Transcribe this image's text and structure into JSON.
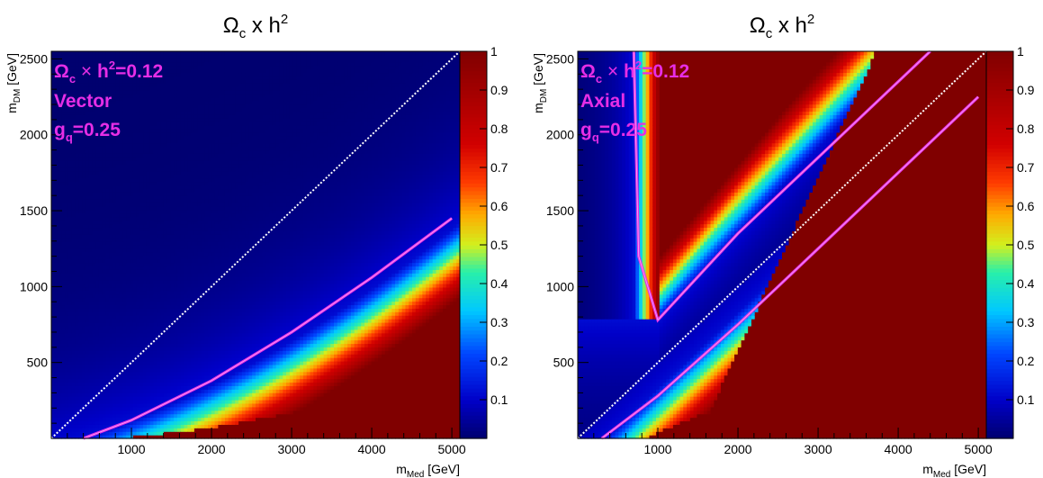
{
  "chart_data": [
    {
      "type": "heatmap",
      "title": "Ωc x h2",
      "title_main": "Ω",
      "title_sub": "c",
      "title_mid": " x h",
      "title_sup": "2",
      "xlabel": "mMed [GeV]",
      "xlabel_main": "m",
      "xlabel_sub": "Med",
      "xlabel_unit": " [GeV]",
      "ylabel": "mDM [GeV]",
      "ylabel_main": "m",
      "ylabel_sub": "DM",
      "ylabel_unit": " [GeV]",
      "xlim": [
        0,
        5100
      ],
      "ylim": [
        0,
        2550
      ],
      "xticks": [
        "1000",
        "2000",
        "3000",
        "4000",
        "5000"
      ],
      "yticks": [
        "500",
        "1000",
        "1500",
        "2000",
        "2500"
      ],
      "zlim": [
        0,
        1
      ],
      "colorbar_ticks": [
        "0.1",
        "0.2",
        "0.3",
        "0.4",
        "0.5",
        "0.6",
        "0.7",
        "0.8",
        "0.9",
        "1"
      ],
      "model": "vector",
      "annotations": [
        "Ωc × h2=0.12",
        "Vector",
        "gq=0.25"
      ],
      "annotation_parts": {
        "line1": {
          "main": "Ω",
          "sub": "c",
          "mid": " × ",
          "h": "h",
          "sup": "2",
          "rest": "=0.12"
        },
        "line2": "Vector",
        "line3": {
          "main": "g",
          "sub": "q",
          "rest": "=0.25"
        }
      },
      "contour_value": 0.12,
      "contour_color": "#e62ee6",
      "diagonal": "mMed = 2 mDM (white dotted)",
      "contour_points": [
        {
          "x": 400,
          "y": 0
        },
        {
          "x": 1000,
          "y": 120
        },
        {
          "x": 2000,
          "y": 380
        },
        {
          "x": 3000,
          "y": 700
        },
        {
          "x": 4000,
          "y": 1060
        },
        {
          "x": 5000,
          "y": 1450
        }
      ]
    },
    {
      "type": "heatmap",
      "title": "Ωc x h2",
      "title_main": "Ω",
      "title_sub": "c",
      "title_mid": " x h",
      "title_sup": "2",
      "xlabel": "mMed [GeV]",
      "xlabel_main": "m",
      "xlabel_sub": "Med",
      "xlabel_unit": " [GeV]",
      "ylabel": "mDM [GeV]",
      "ylabel_main": "m",
      "ylabel_sub": "DM",
      "ylabel_unit": " [GeV]",
      "xlim": [
        0,
        5100
      ],
      "ylim": [
        0,
        2550
      ],
      "xticks": [
        "1000",
        "2000",
        "3000",
        "4000",
        "5000"
      ],
      "yticks": [
        "500",
        "1000",
        "1500",
        "2000",
        "2500"
      ],
      "zlim": [
        0,
        1
      ],
      "colorbar_ticks": [
        "0.1",
        "0.2",
        "0.3",
        "0.4",
        "0.5",
        "0.6",
        "0.7",
        "0.8",
        "0.9",
        "1"
      ],
      "model": "axial",
      "annotations": [
        "Ωc × h2=0.12",
        "Axial",
        "gq=0.25"
      ],
      "annotation_parts": {
        "line1": {
          "main": "Ω",
          "sub": "c",
          "mid": " × ",
          "h": "h",
          "sup": "2",
          "rest": "=0.12"
        },
        "line2": "Axial",
        "line3": {
          "main": "g",
          "sub": "q",
          "rest": "=0.25"
        }
      },
      "contour_value": 0.12,
      "contour_color": "#e62ee6",
      "diagonal": "mMed = 2 mDM (white dotted)",
      "contour_points_v": [
        {
          "x": 700,
          "y": 2550
        },
        {
          "x": 760,
          "y": 1200
        },
        {
          "x": 1000,
          "y": 780
        },
        {
          "x": 2000,
          "y": 1350
        },
        {
          "x": 4400,
          "y": 2550
        }
      ],
      "contour_points_lower": [
        {
          "x": 300,
          "y": 0
        },
        {
          "x": 1000,
          "y": 280
        },
        {
          "x": 2000,
          "y": 750
        },
        {
          "x": 3000,
          "y": 1250
        },
        {
          "x": 4000,
          "y": 1750
        },
        {
          "x": 5000,
          "y": 2250
        }
      ]
    }
  ]
}
